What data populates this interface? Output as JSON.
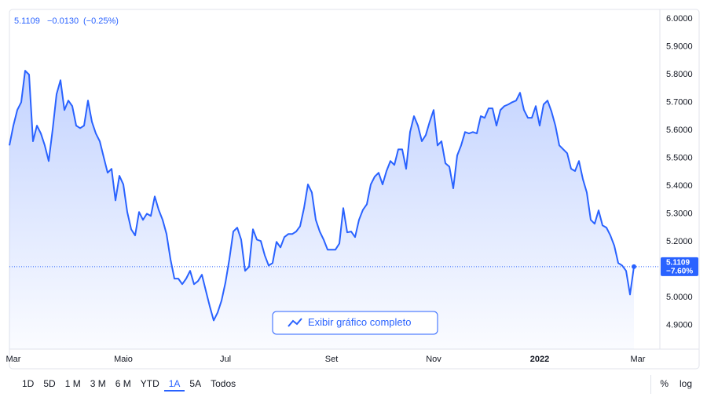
{
  "chart_data": {
    "type": "area",
    "header": {
      "price": "5.1109",
      "change": "−0.0130",
      "change_pct": "(−0.25%)"
    },
    "price_tag": {
      "price": "5.1109",
      "change_pct": "−7.60%"
    },
    "color": "#2962ff",
    "grid": false,
    "ylim": [
      4.815,
      6.034
    ],
    "yticks": [
      {
        "value": 4.9,
        "label": "4.9000"
      },
      {
        "value": 5.0,
        "label": "5.0000"
      },
      {
        "value": 5.1,
        "label": "5.1000"
      },
      {
        "value": 5.2,
        "label": "5.2000"
      },
      {
        "value": 5.3,
        "label": "5.3000"
      },
      {
        "value": 5.4,
        "label": "5.4000"
      },
      {
        "value": 5.5,
        "label": "5.5000"
      },
      {
        "value": 5.6,
        "label": "5.6000"
      },
      {
        "value": 5.7,
        "label": "5.7000"
      },
      {
        "value": 5.8,
        "label": "5.8000"
      },
      {
        "value": 5.9,
        "label": "5.9000"
      },
      {
        "value": 6.0,
        "label": "6.0000"
      }
    ],
    "categories": [
      null,
      "Mar",
      null,
      null,
      null,
      null,
      null,
      null,
      null,
      null,
      null,
      null,
      null,
      null,
      null,
      null,
      null,
      null,
      null,
      null,
      null,
      null,
      null,
      null,
      null,
      null,
      null,
      null,
      null,
      "Maio",
      null,
      null,
      null,
      null,
      null,
      null,
      null,
      null,
      null,
      null,
      null,
      null,
      null,
      null,
      null,
      null,
      null,
      null,
      null,
      null,
      null,
      null,
      null,
      null,
      null,
      "Jul",
      null,
      null,
      null,
      null,
      null,
      null,
      null,
      null,
      null,
      null,
      null,
      null,
      null,
      null,
      null,
      null,
      null,
      null,
      null,
      null,
      null,
      null,
      null,
      null,
      null,
      null,
      "Set",
      null,
      null,
      null,
      null,
      null,
      null,
      null,
      null,
      null,
      null,
      null,
      null,
      null,
      null,
      null,
      null,
      null,
      null,
      null,
      null,
      null,
      null,
      null,
      null,
      null,
      "Nov",
      null,
      null,
      null,
      null,
      null,
      null,
      null,
      null,
      null,
      null,
      null,
      null,
      null,
      null,
      null,
      null,
      null,
      null,
      null,
      null,
      null,
      null,
      null,
      null,
      null,
      null,
      "2022",
      null,
      null,
      null,
      null,
      null,
      null,
      null,
      null,
      null,
      null,
      null,
      null,
      null,
      null,
      null,
      null,
      null,
      null,
      null,
      null,
      null,
      null,
      null,
      null,
      "Mar"
    ],
    "bold_category": "2022",
    "values": [
      5.546,
      5.617,
      5.673,
      5.701,
      5.814,
      5.8,
      5.561,
      5.617,
      5.589,
      5.546,
      5.49,
      5.603,
      5.73,
      5.78,
      5.673,
      5.707,
      5.687,
      5.617,
      5.608,
      5.617,
      5.707,
      5.631,
      5.589,
      5.561,
      5.504,
      5.448,
      5.462,
      5.349,
      5.437,
      5.406,
      5.307,
      5.245,
      5.223,
      5.307,
      5.279,
      5.301,
      5.293,
      5.363,
      5.315,
      5.279,
      5.228,
      5.138,
      5.068,
      5.068,
      5.048,
      5.068,
      5.096,
      5.048,
      5.059,
      5.082,
      5.025,
      4.969,
      4.918,
      4.946,
      4.989,
      5.054,
      5.138,
      5.237,
      5.251,
      5.208,
      5.096,
      5.11,
      5.245,
      5.208,
      5.203,
      5.152,
      5.115,
      5.124,
      5.2,
      5.18,
      5.217,
      5.228,
      5.228,
      5.237,
      5.256,
      5.321,
      5.406,
      5.377,
      5.279,
      5.237,
      5.208,
      5.172,
      5.172,
      5.172,
      5.194,
      5.321,
      5.234,
      5.237,
      5.217,
      5.279,
      5.315,
      5.335,
      5.406,
      5.434,
      5.448,
      5.406,
      5.454,
      5.49,
      5.476,
      5.532,
      5.532,
      5.462,
      5.594,
      5.651,
      5.617,
      5.561,
      5.583,
      5.631,
      5.673,
      5.546,
      5.561,
      5.482,
      5.47,
      5.392,
      5.51,
      5.546,
      5.594,
      5.589,
      5.594,
      5.589,
      5.651,
      5.645,
      5.679,
      5.679,
      5.617,
      5.673,
      5.687,
      5.693,
      5.701,
      5.707,
      5.735,
      5.673,
      5.645,
      5.645,
      5.687,
      5.617,
      5.693,
      5.707,
      5.668,
      5.617,
      5.546,
      5.532,
      5.518,
      5.462,
      5.454,
      5.49,
      5.425,
      5.377,
      5.279,
      5.265,
      5.313,
      5.259,
      5.251,
      5.223,
      5.186,
      5.124,
      5.115,
      5.096,
      5.011,
      5.1109,
      null
    ]
  },
  "button": {
    "label": "Exibir gráfico completo"
  },
  "toolbar": {
    "ranges": [
      "1D",
      "5D",
      "1 M",
      "3 M",
      "6 M",
      "YTD",
      "1A",
      "5A",
      "Todos"
    ],
    "selected": "1A",
    "options": [
      "%",
      "log"
    ]
  }
}
